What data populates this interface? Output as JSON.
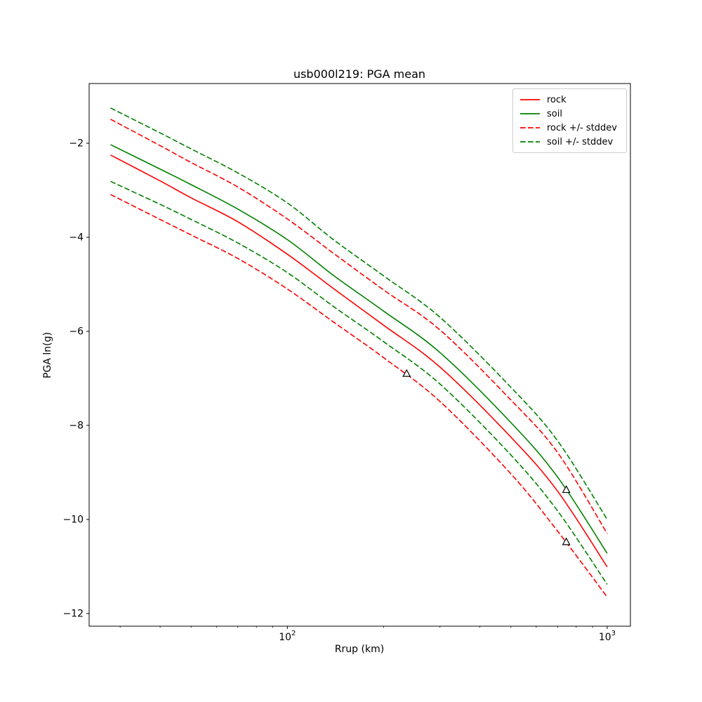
{
  "figure": {
    "background": "#ffffff",
    "text_color": "#000000",
    "spine_color": "#000000"
  },
  "chart_data": {
    "type": "line",
    "title": "usb000l219: PGA mean",
    "xlabel": "Rrup (km)",
    "ylabel": "PGA ln(g)",
    "x_scale": "log",
    "grid": false,
    "legend_position": "upper right",
    "xlim": [
      24,
      1182
    ],
    "ylim": [
      -12.27,
      -0.73
    ],
    "y_ticks": [
      -2,
      -4,
      -6,
      -8,
      -10,
      -12
    ],
    "x_major_ticks": [
      {
        "value": 100,
        "base": "10",
        "exp": "2"
      },
      {
        "value": 1000,
        "base": "10",
        "exp": "3"
      }
    ],
    "x_minor_ticks": [
      30,
      40,
      50,
      60,
      70,
      80,
      90,
      200,
      300,
      400,
      500,
      600,
      700,
      800,
      900
    ],
    "x": [
      28,
      40,
      50,
      70,
      100,
      140,
      200,
      300,
      500,
      700,
      1000
    ],
    "series": [
      {
        "name": "rock",
        "color": "#ff0000",
        "style": "solid",
        "values": [
          -2.25,
          -2.8,
          -3.16,
          -3.67,
          -4.36,
          -5.1,
          -5.87,
          -6.76,
          -8.25,
          -9.4,
          -11.01
        ]
      },
      {
        "name": "soil",
        "color": "#008000",
        "style": "solid",
        "values": [
          -2.03,
          -2.55,
          -2.88,
          -3.4,
          -4.05,
          -4.82,
          -5.57,
          -6.45,
          -7.94,
          -9.1,
          -10.72
        ]
      },
      {
        "name": "rock +stddev",
        "color": "#ff0000",
        "style": "dashed",
        "values": [
          -1.49,
          -2.05,
          -2.41,
          -2.93,
          -3.61,
          -4.35,
          -5.12,
          -5.97,
          -7.46,
          -8.58,
          -10.3
        ]
      },
      {
        "name": "rock -stddev",
        "color": "#ff0000",
        "style": "dashed",
        "values": [
          -3.09,
          -3.62,
          -3.95,
          -4.45,
          -5.1,
          -5.81,
          -6.56,
          -7.49,
          -9.03,
          -10.25,
          -11.65
        ]
      },
      {
        "name": "soil +stddev",
        "color": "#008000",
        "style": "dashed",
        "values": [
          -1.25,
          -1.78,
          -2.12,
          -2.63,
          -3.27,
          -4.06,
          -4.82,
          -5.7,
          -7.19,
          -8.33,
          -10.0
        ]
      },
      {
        "name": "soil -stddev",
        "color": "#008000",
        "style": "dashed",
        "values": [
          -2.81,
          -3.3,
          -3.62,
          -4.12,
          -4.75,
          -5.48,
          -6.22,
          -7.12,
          -8.63,
          -9.82,
          -11.38
        ]
      }
    ],
    "legend": [
      {
        "label": "rock",
        "color": "#ff0000",
        "style": "solid"
      },
      {
        "label": "soil",
        "color": "#008000",
        "style": "solid"
      },
      {
        "label": "rock +/- stddev",
        "color": "#ff0000",
        "style": "dashed"
      },
      {
        "label": "soil +/- stddev",
        "color": "#008000",
        "style": "dashed"
      }
    ],
    "observations": {
      "marker": "triangle-up-open",
      "edge_color": "#000000",
      "points": [
        {
          "rrup_km": 236,
          "pga_ln_g": -6.9
        },
        {
          "rrup_km": 745,
          "pga_ln_g": -9.37
        },
        {
          "rrup_km": 745,
          "pga_ln_g": -10.48
        }
      ]
    }
  }
}
